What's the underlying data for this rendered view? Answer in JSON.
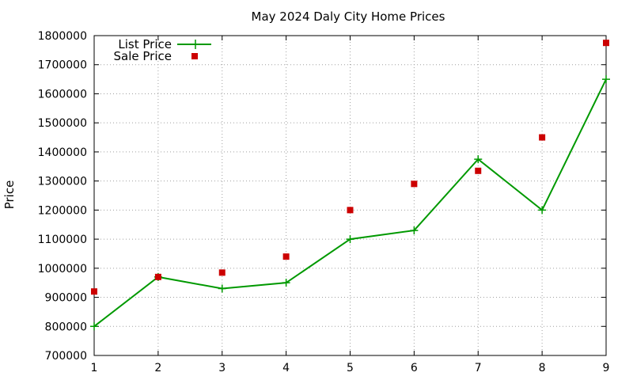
{
  "chart_data": {
    "type": "line",
    "title": "May 2024 Daly City Home Prices",
    "xlabel": "",
    "ylabel": "Price",
    "xlim": [
      1,
      9
    ],
    "ylim": [
      700000,
      1800000
    ],
    "x_ticks": [
      1,
      2,
      3,
      4,
      5,
      6,
      7,
      8,
      9
    ],
    "y_ticks": [
      700000,
      800000,
      900000,
      1000000,
      1100000,
      1200000,
      1300000,
      1400000,
      1500000,
      1600000,
      1700000,
      1800000
    ],
    "grid": true,
    "legend_position": "top-left",
    "series": [
      {
        "name": "List Price",
        "style": "line+plus-markers",
        "color": "#009900",
        "x": [
          1,
          2,
          3,
          4,
          5,
          6,
          7,
          8,
          9
        ],
        "values": [
          800000,
          970000,
          930000,
          950000,
          1100000,
          1130000,
          1375000,
          1200000,
          1650000
        ]
      },
      {
        "name": "Sale Price",
        "style": "square-markers",
        "color": "#cc0000",
        "x": [
          1,
          2,
          3,
          4,
          5,
          6,
          7,
          8,
          9
        ],
        "values": [
          920000,
          970000,
          985000,
          1040000,
          1200000,
          1290000,
          1335000,
          1450000,
          1775000
        ]
      }
    ]
  }
}
